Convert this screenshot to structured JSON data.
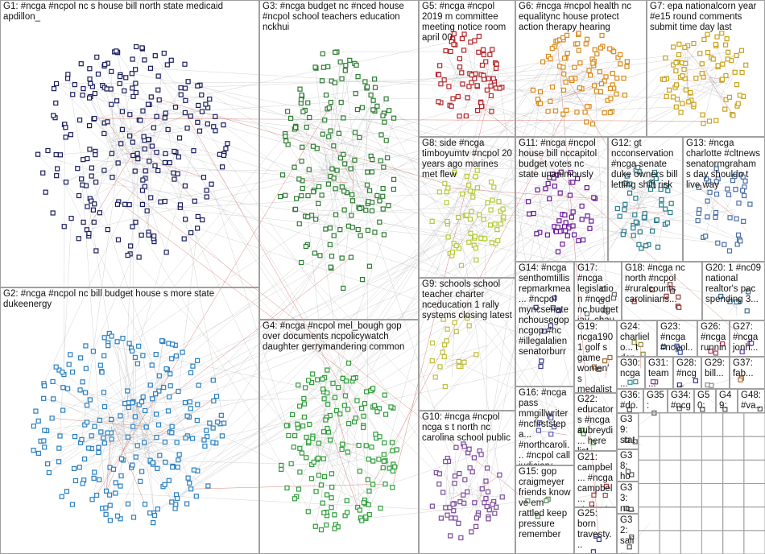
{
  "groups": [
    {
      "label": "G1: #ncga #ncpol nc s house bill north state medicaid apdillon_"
    },
    {
      "label": "G3: #ncga budget nc #nced house #ncpol school teachers education nckhui"
    },
    {
      "label": "G5: #ncga #ncpol 2019 m committee meeting notice room april 00"
    },
    {
      "label": "G6: #ncga #ncpol health nc equalitync house protect action therapy hearing"
    },
    {
      "label": "G7: epa nationalcorn year #e15 round comments submit time day last"
    },
    {
      "label": "G8: side #ncga timboyumtv #ncpol 20 years ago marines met flew"
    },
    {
      "label": "G11: #ncga #ncpol house bill nccapitol budget votes nc state unanimously"
    },
    {
      "label": "G12: gt ncconservation #ncga senate duke owners bill letting shift risk"
    },
    {
      "label": "G13: #ncga charlotte #cltnews senatormgraham s day shouldn t live way"
    },
    {
      "label": "G2: #ncga #ncpol nc bill budget house s more state dukeenergy"
    },
    {
      "label": "G4: #ncga #ncpol mel_bough gop over documents ncpolicywatch daughter gerrymandering common"
    },
    {
      "label": "G9: schools school teacher charter nceducation 1 rally systems closing latest"
    },
    {
      "label": "G10: #ncga #ncpol ncga s t north nc carolina school public"
    },
    {
      "label": "G14: #ncga senthomtillis repmarkmea... #ncpol myncsenate nchousegop ncgop #nc #illegalalien senatorburr"
    },
    {
      "label": "G17: #ncga legislation #nced nc budget jay_chaudhuri..."
    },
    {
      "label": "G18: #ncga nc north #ncpol #ruralcounts carolinians..."
    },
    {
      "label": "G20: 1 #nc09 national realtor's pac spending 3..."
    },
    {
      "label": "G16: #ncga pass mmgillwriter #ncfirststepa... #northcaroli... #ncpol call judiciary..."
    },
    {
      "label": "G15: gop craigmeyer friends know ve em rattled keep pressure remember"
    },
    {
      "label": "G19: ncga1901 golf s game women's medalist u san..."
    },
    {
      "label": "G24: charlielo... t don..."
    },
    {
      "label": "G23: #ncga #ncpol..."
    },
    {
      "label": "G26: #ncga runnin..."
    },
    {
      "label": "G27: #ncga jonh..."
    },
    {
      "label": "G30: ncga..."
    },
    {
      "label": "G31: team..."
    },
    {
      "label": "G28: #ncg..."
    },
    {
      "label": "G29: bill..."
    },
    {
      "label": "G37: fab..."
    },
    {
      "label": "G22: educators #ncga aubreydi... here list..."
    },
    {
      "label": "G21: campbel... #ncga campbel... students..."
    },
    {
      "label": "G25: born travesty..."
    },
    {
      "label": "G36: #do..."
    },
    {
      "label": "G35: appr..."
    },
    {
      "label": "G34: #ncg..."
    },
    {
      "label": "G50: yea..."
    },
    {
      "label": "G49: ma..."
    },
    {
      "label": "G48: #va..."
    },
    {
      "label": "G39: stat..."
    },
    {
      "label": "G38: hou..."
    },
    {
      "label": "G33: nc..."
    },
    {
      "label": "G32: sali..."
    }
  ]
}
